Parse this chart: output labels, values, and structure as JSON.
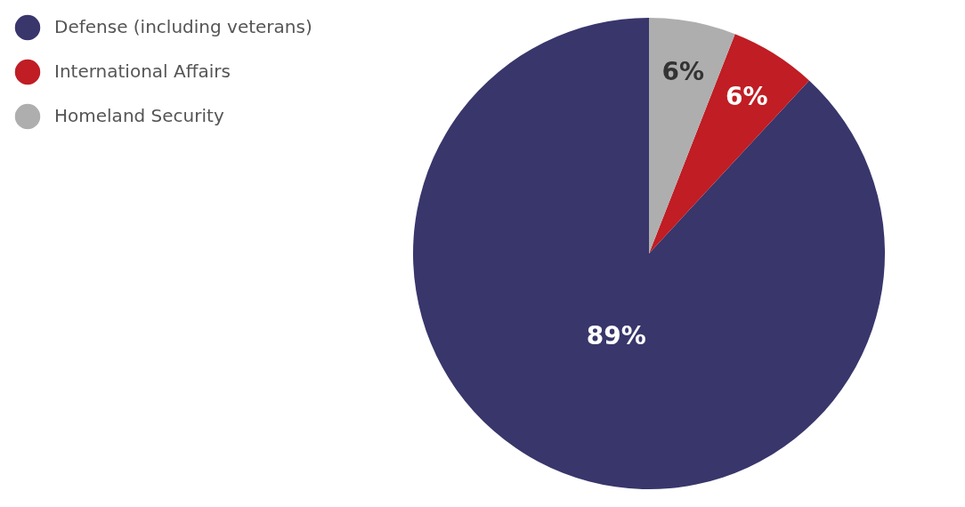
{
  "chart_data": {
    "type": "pie",
    "categories": [
      "Defense (including veterans)",
      "International Affairs",
      "Homeland Security"
    ],
    "values": [
      89,
      6,
      6
    ],
    "colors": [
      "#38366b",
      "#c01d24",
      "#aeaeae"
    ],
    "value_labels": [
      "89%",
      "6%",
      "6%"
    ],
    "legend": "left"
  }
}
